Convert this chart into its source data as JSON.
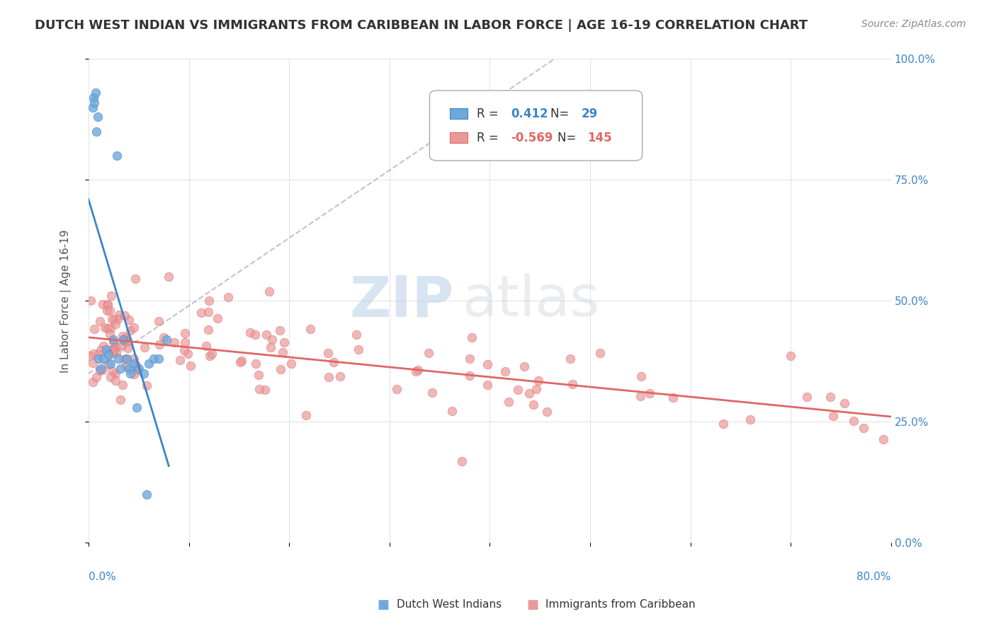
{
  "title": "DUTCH WEST INDIAN VS IMMIGRANTS FROM CARIBBEAN IN LABOR FORCE | AGE 16-19 CORRELATION CHART",
  "source": "Source: ZipAtlas.com",
  "ylabel": "In Labor Force | Age 16-19",
  "legend_blue_r": "0.412",
  "legend_blue_n": "29",
  "legend_pink_r": "-0.569",
  "legend_pink_n": "145",
  "blue_color": "#6fa8dc",
  "pink_color": "#ea9999",
  "blue_line_color": "#3d85c8",
  "pink_line_color": "#e06666",
  "watermark_zip": "ZIP",
  "watermark_atlas": "atlas",
  "xlim": [
    0.0,
    0.8
  ],
  "ylim": [
    0.0,
    1.0
  ],
  "background_color": "#ffffff",
  "grid_color": "#dddddd"
}
